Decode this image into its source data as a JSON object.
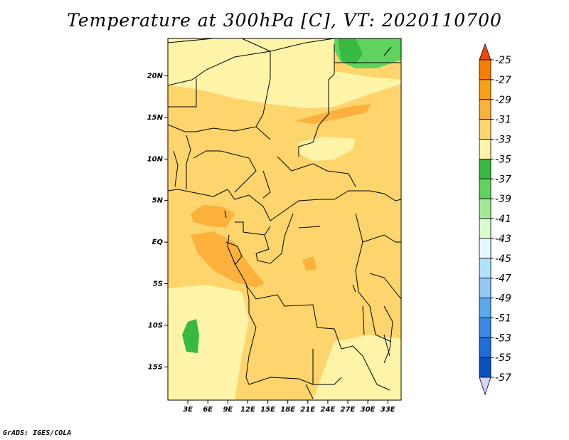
{
  "title": "Temperature at 300hPa [C], VT: 2020110700",
  "credit": "GrADS: IGES/COLA",
  "map": {
    "lat_range": [
      -19,
      24.5
    ],
    "lon_range": [
      0,
      35
    ],
    "lat_ticks": [
      {
        "v": 20,
        "label": "20N"
      },
      {
        "v": 15,
        "label": "15N"
      },
      {
        "v": 10,
        "label": "10N"
      },
      {
        "v": 5,
        "label": "5N"
      },
      {
        "v": 0,
        "label": "EQ"
      },
      {
        "v": -5,
        "label": "5S"
      },
      {
        "v": -10,
        "label": "10S"
      },
      {
        "v": -15,
        "label": "15S"
      }
    ],
    "lon_ticks": [
      {
        "v": 3,
        "label": "3E"
      },
      {
        "v": 6,
        "label": "6E"
      },
      {
        "v": 9,
        "label": "9E"
      },
      {
        "v": 12,
        "label": "12E"
      },
      {
        "v": 15,
        "label": "15E"
      },
      {
        "v": 18,
        "label": "18E"
      },
      {
        "v": 21,
        "label": "21E"
      },
      {
        "v": 24,
        "label": "24E"
      },
      {
        "v": 27,
        "label": "27E"
      },
      {
        "v": 30,
        "label": "30E"
      },
      {
        "v": 33,
        "label": "33E"
      }
    ]
  },
  "colorbar": {
    "labels": [
      "-25",
      "-27",
      "-29",
      "-31",
      "-33",
      "-35",
      "-37",
      "-39",
      "-41",
      "-43",
      "-45",
      "-47",
      "-49",
      "-51",
      "-53",
      "-55",
      "-57"
    ],
    "colors": [
      "#f04a00",
      "#f57f00",
      "#fa9f1a",
      "#fbb13c",
      "#fdd56c",
      "#fef4a8",
      "#37b944",
      "#5fd35d",
      "#a2eb96",
      "#dafbd0",
      "#e6f8ff",
      "#b2e2fb",
      "#91c8f7",
      "#5ba6ee",
      "#3b88e5",
      "#1e6ed8",
      "#0a4fc0",
      "#0a2da0",
      "#1a0e6a",
      "#d9d4ff"
    ],
    "top_arrow_color": "#f04a00",
    "bottom_arrow_color": "#d9d4ff"
  }
}
